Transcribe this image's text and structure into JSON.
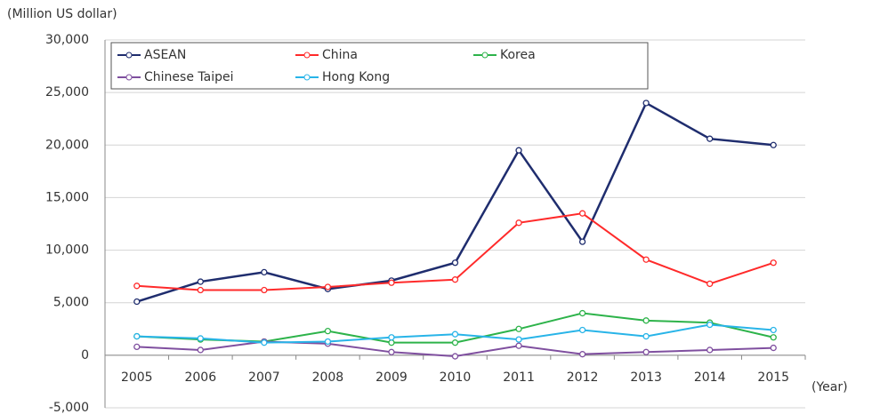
{
  "chart_data": {
    "type": "line",
    "y_axis_label": "(Million US dollar)",
    "x_axis_label": "(Year)",
    "categories": [
      "2005",
      "2006",
      "2007",
      "2008",
      "2009",
      "2010",
      "2011",
      "2012",
      "2013",
      "2014",
      "2015"
    ],
    "series": [
      {
        "name": "ASEAN",
        "color": "#1f2d6e",
        "values": [
          5100,
          7000,
          7900,
          6300,
          7100,
          8800,
          19500,
          10800,
          24000,
          20600,
          20000
        ]
      },
      {
        "name": "China",
        "color": "#ff2a2a",
        "values": [
          6600,
          6200,
          6200,
          6500,
          6900,
          7200,
          12600,
          13500,
          9100,
          6800,
          8800
        ]
      },
      {
        "name": "Korea",
        "color": "#2db34a",
        "values": [
          1800,
          1500,
          1300,
          2300,
          1200,
          1200,
          2500,
          4000,
          3300,
          3100,
          1700
        ]
      },
      {
        "name": "Chinese Taipei",
        "color": "#7f4f9f",
        "values": [
          800,
          500,
          1300,
          1100,
          300,
          -100,
          900,
          100,
          300,
          500,
          700
        ]
      },
      {
        "name": "Hong Kong",
        "color": "#28b4e8",
        "values": [
          1800,
          1600,
          1200,
          1300,
          1700,
          2000,
          1500,
          2400,
          1800,
          2900,
          2400
        ]
      }
    ],
    "ylim": [
      -5000,
      30000
    ],
    "yticks": [
      {
        "value": -5000,
        "label": "-5,000"
      },
      0,
      {
        "value": 5000,
        "label": "5,000"
      },
      {
        "value": 10000,
        "label": "10,000"
      },
      {
        "value": 15000,
        "label": "15,000"
      },
      {
        "value": 20000,
        "label": "20,000"
      },
      {
        "value": 25000,
        "label": "25,000"
      },
      {
        "value": 30000,
        "label": "30,000"
      }
    ],
    "grid": true
  }
}
